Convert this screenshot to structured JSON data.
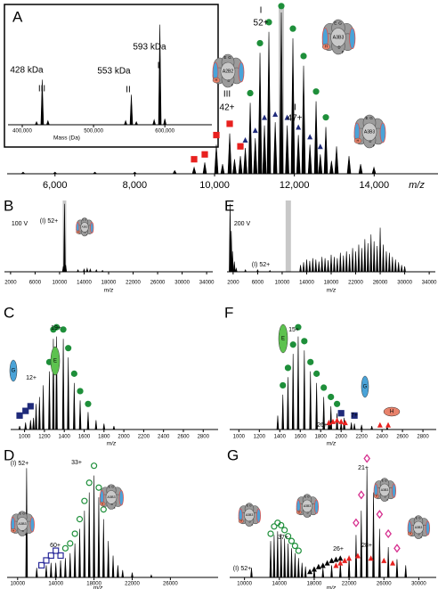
{
  "chart_data": [
    {
      "type": "spectrum",
      "label": "A",
      "xlim": [
        4800,
        15600
      ],
      "ylim": [
        0,
        105
      ],
      "xticks": [
        {
          "value": 6000,
          "label": "6,000"
        },
        {
          "value": 8000,
          "label": "8,000"
        },
        {
          "value": 10000,
          "label": "10,000"
        },
        {
          "value": 12000,
          "label": "12,000"
        },
        {
          "value": 14000,
          "label": "14,000"
        }
      ],
      "xlabel": "m/z",
      "highlight": 11673,
      "peaks": {
        "color": "#000000",
        "x": [
          5200,
          6000,
          7000,
          8000,
          9000,
          9487,
          9754,
          10044,
          10200,
          10379,
          10500,
          10647,
          10770,
          10893,
          11020,
          11138,
          11250,
          11361,
          11520,
          11673,
          11820,
          11963,
          12100,
          12231,
          12390,
          12544,
          12650,
          12789,
          12930,
          13057,
          13369,
          13660,
          13994
        ],
        "values": [
          1,
          1,
          1,
          1,
          2,
          4,
          7,
          18,
          6,
          25,
          9,
          11,
          16,
          44,
          22,
          75,
          30,
          88,
          32,
          100,
          30,
          84,
          24,
          67,
          18,
          45,
          12,
          29,
          8,
          17,
          11,
          6,
          4
        ]
      },
      "markers": [
        {
          "shape": "circle",
          "color": "#1e8f3a",
          "x": [
            10893,
            11138,
            11361,
            11673,
            11963,
            12231,
            12544,
            12789
          ],
          "values": [
            50,
            81,
            94,
            104,
            90,
            73,
            51,
            35
          ]
        },
        {
          "shape": "square",
          "color": "#e8211f",
          "x": [
            9487,
            9754,
            10044,
            10379,
            10647
          ],
          "values": [
            9,
            12,
            24,
            31,
            17
          ]
        },
        {
          "shape": "triangle",
          "color": "#1f2a7a",
          "x": [
            10770,
            11020,
            11250,
            11520,
            11820,
            12100,
            12390,
            12650
          ],
          "values": [
            21,
            27,
            35,
            37,
            35,
            29,
            23,
            17
          ]
        }
      ],
      "annotations": [
        "I",
        "52+",
        "III",
        "42+",
        "II",
        "47+"
      ]
    },
    {
      "type": "spectrum",
      "xlim": [
        380000,
        666000
      ],
      "ylim": [
        0,
        105
      ],
      "xticks": [
        {
          "value": 400000,
          "label": "400,000"
        },
        {
          "value": 500000,
          "label": "500,000"
        },
        {
          "value": 600000,
          "label": "600,000"
        }
      ],
      "xlabel": "Mass (Da)",
      "peaks": {
        "color": "#000000",
        "x": [
          420000,
          428000,
          436000,
          545000,
          553000,
          560000,
          585000,
          593000,
          600000
        ],
        "values": [
          3,
          45,
          4,
          4,
          30,
          3,
          5,
          100,
          6
        ]
      },
      "annotations": [
        "593 kDa",
        "I",
        "553 kDa",
        "II",
        "428 kDa",
        "III"
      ]
    },
    {
      "type": "spectrum",
      "label": "B",
      "xlim": [
        1000,
        35000
      ],
      "ylim": [
        0,
        105
      ],
      "xticks": [
        2000,
        6000,
        10000,
        14000,
        18000,
        22000,
        26000,
        30000,
        34000
      ],
      "xlabel": "m/z",
      "highlight": 10800,
      "peaks": {
        "color": "#000000",
        "x": [
          10600,
          10800,
          11000,
          13000,
          14000,
          14500,
          15000,
          16000,
          17000
        ],
        "values": [
          8,
          100,
          10,
          3,
          4,
          5,
          4,
          3,
          2
        ]
      },
      "annotations": [
        "100 V",
        "(I) 52+"
      ]
    },
    {
      "type": "spectrum",
      "label": "E",
      "xlim": [
        1000,
        35000
      ],
      "ylim": [
        0,
        105
      ],
      "xticks": [
        2000,
        6000,
        10000,
        14000,
        18000,
        22000,
        26000,
        30000,
        34000
      ],
      "xlabel": "m/z",
      "highlight": 11000,
      "peaks": {
        "color": "#000000",
        "x": [
          1500,
          1700,
          1900,
          2200,
          2500,
          4000,
          6000,
          8000,
          13000,
          13500,
          14000,
          14500,
          15000,
          15500,
          16000,
          16500,
          17000,
          17500,
          18000,
          18500,
          19000,
          19500,
          20000,
          20500,
          21000,
          21500,
          22000,
          22500,
          23000,
          23500,
          24000,
          24500,
          25000,
          25500,
          26000,
          26500,
          27000,
          27500,
          28000,
          28500,
          29000,
          29500,
          30000
        ],
        "values": [
          100,
          60,
          30,
          15,
          5,
          3,
          3,
          2,
          10,
          14,
          18,
          16,
          20,
          18,
          15,
          22,
          20,
          17,
          25,
          22,
          20,
          28,
          24,
          30,
          26,
          35,
          30,
          40,
          35,
          48,
          42,
          55,
          45,
          38,
          65,
          40,
          30,
          28,
          22,
          18,
          14,
          10,
          8
        ]
      },
      "annotations": [
        "200 V",
        "(I) 52+"
      ]
    },
    {
      "type": "spectrum",
      "label": "C",
      "xlim": [
        860,
        2950
      ],
      "ylim": [
        0,
        105
      ],
      "xticks": [
        1000,
        1200,
        1400,
        1600,
        1800,
        2000,
        2200,
        2400,
        2600,
        2800
      ],
      "xlabel": "m/z",
      "peaks": {
        "color": "#000000",
        "x": [
          950,
          1010,
          1060,
          1090,
          1116,
          1150,
          1188,
          1250,
          1290,
          1322,
          1390,
          1440,
          1500,
          1560,
          1640,
          1720,
          1800,
          1900
        ],
        "values": [
          3,
          6,
          8,
          10,
          22,
          28,
          38,
          50,
          78,
          80,
          78,
          62,
          40,
          25,
          15,
          8,
          5,
          3
        ]
      },
      "markers": [
        {
          "shape": "circle",
          "color": "#1e8f3a",
          "x": [
            1250,
            1290,
            1322,
            1390,
            1440,
            1500,
            1560,
            1640
          ],
          "values": [
            58,
            86,
            88,
            86,
            70,
            48,
            33,
            22
          ]
        },
        {
          "shape": "square",
          "color": "#1f2a7a",
          "x": [
            950,
            1010,
            1060
          ],
          "values": [
            12,
            16,
            20
          ]
        }
      ],
      "annotations": [
        "19+",
        "12+"
      ]
    },
    {
      "type": "spectrum",
      "label": "F",
      "xlim": [
        910,
        2930
      ],
      "ylim": [
        0,
        105
      ],
      "xticks": [
        1000,
        1200,
        1400,
        1600,
        1800,
        2000,
        2200,
        2400,
        2600,
        2800
      ],
      "xlabel": "m/z",
      "peaks": {
        "color": "#000000",
        "x": [
          1380,
          1430,
          1480,
          1530,
          1580,
          1640,
          1700,
          1760,
          1830,
          1880,
          1900,
          1960,
          2000,
          2030,
          2100,
          2130,
          2200,
          2300,
          2450
        ],
        "values": [
          12,
          30,
          45,
          65,
          80,
          68,
          50,
          40,
          28,
          8,
          20,
          14,
          6,
          10,
          6,
          5,
          4,
          3,
          2
        ]
      },
      "markers": [
        {
          "shape": "circle",
          "color": "#1e8f3a",
          "x": [
            1430,
            1480,
            1530,
            1580,
            1640,
            1700,
            1760,
            1830,
            1900,
            1960
          ],
          "values": [
            38,
            53,
            73,
            88,
            76,
            58,
            48,
            36,
            28,
            22
          ]
        },
        {
          "shape": "triangle",
          "color": "#e8211f",
          "x": [
            1880,
            1920,
            1960,
            2000,
            2040,
            2380,
            2460
          ],
          "values": [
            6,
            7,
            8,
            7,
            6,
            4,
            4
          ]
        },
        {
          "shape": "square",
          "color": "#1f2a7a",
          "x": [
            2000,
            2130
          ],
          "values": [
            14,
            12
          ]
        }
      ],
      "annotations": [
        "15+",
        "7+",
        "26+"
      ]
    },
    {
      "type": "spectrum",
      "label": "D",
      "xlim": [
        8900,
        31000
      ],
      "ylim": [
        0,
        105
      ],
      "xticks": [
        10000,
        14000,
        18000,
        22000,
        26000
      ],
      "xlabel": "m/z",
      "peaks": {
        "color": "#000000",
        "x": [
          10941,
          12000,
          13000,
          13500,
          14000,
          14500,
          15000,
          15500,
          16000,
          16500,
          17000,
          17500,
          18000,
          18500,
          19000,
          19500,
          20000,
          20500,
          21000,
          22000,
          24000
        ],
        "values": [
          90,
          8,
          10,
          12,
          12,
          14,
          16,
          20,
          28,
          40,
          55,
          70,
          84,
          66,
          48,
          30,
          18,
          10,
          6,
          4,
          2
        ]
      },
      "markers": [
        {
          "shape": "open-circle",
          "color": "#1e8f3a",
          "x": [
            15000,
            15500,
            16000,
            16500,
            17000,
            17500,
            18000,
            18500,
            19000
          ],
          "values": [
            24,
            28,
            36,
            48,
            63,
            78,
            92,
            74,
            56
          ]
        },
        {
          "shape": "open-square",
          "color": "#2a2a9a",
          "x": [
            12500,
            13000,
            13500,
            14000,
            14500
          ],
          "values": [
            10,
            14,
            18,
            22,
            18
          ]
        }
      ],
      "annotations": [
        "(I) 52+",
        "60+",
        "33+"
      ]
    },
    {
      "type": "spectrum",
      "label": "G",
      "xlim": [
        8300,
        32000
      ],
      "ylim": [
        0,
        105
      ],
      "xticks": [
        10000,
        14000,
        18000,
        22000,
        26000,
        30000
      ],
      "xlabel": "m/z",
      "peaks": {
        "color": "#000000",
        "x": [
          10800,
          13000,
          13400,
          13800,
          14200,
          14600,
          15000,
          15400,
          15800,
          16200,
          16600,
          17000,
          18000,
          19000,
          20000,
          21000,
          22000,
          22800,
          23400,
          24050,
          24800,
          25500,
          26500,
          27500,
          28500
        ],
        "values": [
          8,
          30,
          35,
          38,
          36,
          32,
          28,
          24,
          20,
          16,
          12,
          9,
          7,
          8,
          10,
          12,
          18,
          35,
          55,
          90,
          70,
          40,
          25,
          15,
          10
        ]
      },
      "markers": [
        {
          "shape": "open-circle",
          "color": "#1e8f3a",
          "x": [
            13000,
            13400,
            13800,
            14200,
            14600,
            15000,
            15400,
            15800,
            16200
          ],
          "values": [
            36,
            42,
            45,
            43,
            39,
            34,
            30,
            26,
            22
          ]
        },
        {
          "shape": "triangle",
          "color": "#000000",
          "x": [
            17500,
            18000,
            18500,
            19000,
            19500,
            20000,
            20500,
            21000
          ],
          "values": [
            5,
            7,
            9,
            10,
            12,
            14,
            15,
            16
          ]
        },
        {
          "shape": "triangle",
          "color": "#e8211f",
          "x": [
            20500,
            21000,
            21500,
            22000,
            23000,
            24500,
            26000,
            27000
          ],
          "values": [
            10,
            12,
            14,
            16,
            18,
            16,
            14,
            12
          ]
        },
        {
          "shape": "diamond",
          "color": "#d6308f",
          "x": [
            22800,
            23400,
            24050,
            25500,
            26500,
            27500
          ],
          "values": [
            45,
            68,
            98,
            52,
            36,
            24
          ]
        }
      ],
      "annotations": [
        "21+",
        "37+",
        "26+",
        "28+",
        "(I) 52+"
      ]
    }
  ],
  "complex_labels": [
    "A3B3",
    "A2B2",
    "E",
    "G",
    "D",
    "F",
    "H"
  ]
}
